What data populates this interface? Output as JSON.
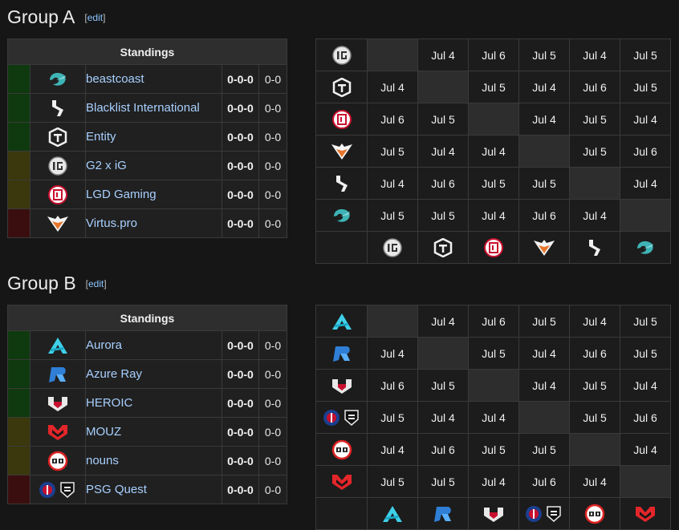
{
  "colors": {
    "green": "#0f3a0f",
    "olive": "#3a380c",
    "red": "#3a0e0e",
    "link": "#a8d0ff"
  },
  "groups": [
    {
      "title": "Group A",
      "edit": "edit",
      "standings_header": "Standings",
      "teams": [
        {
          "name": "beastcoast",
          "icon": "beastcoast-logo-icon",
          "record": "0-0-0",
          "score": "0-0",
          "status": "green"
        },
        {
          "name": "Blacklist International",
          "icon": "blacklist-logo-icon",
          "record": "0-0-0",
          "score": "0-0",
          "status": "green"
        },
        {
          "name": "Entity",
          "icon": "entity-logo-icon",
          "record": "0-0-0",
          "score": "0-0",
          "status": "green"
        },
        {
          "name": "G2 x iG",
          "icon": "g2-ig-logo-icon",
          "record": "0-0-0",
          "score": "0-0",
          "status": "olive"
        },
        {
          "name": "LGD Gaming",
          "icon": "lgd-logo-icon",
          "record": "0-0-0",
          "score": "0-0",
          "status": "olive"
        },
        {
          "name": "Virtus.pro",
          "icon": "virtuspro-logo-icon",
          "record": "0-0-0",
          "score": "0-0",
          "status": "red"
        }
      ],
      "matrix_rows": [
        "g2-ig-logo-icon",
        "entity-logo-icon",
        "lgd-logo-icon",
        "virtuspro-logo-icon",
        "blacklist-logo-icon",
        "beastcoast-logo-icon"
      ],
      "matrix_cols": [
        "g2-ig-logo-icon",
        "entity-logo-icon",
        "lgd-logo-icon",
        "virtuspro-logo-icon",
        "blacklist-logo-icon",
        "beastcoast-logo-icon"
      ],
      "matrix": [
        [
          "",
          "Jul 4",
          "Jul 6",
          "Jul 5",
          "Jul 4",
          "Jul 5"
        ],
        [
          "Jul 4",
          "",
          "Jul 5",
          "Jul 4",
          "Jul 6",
          "Jul 5"
        ],
        [
          "Jul 6",
          "Jul 5",
          "",
          "Jul 4",
          "Jul 5",
          "Jul 4"
        ],
        [
          "Jul 5",
          "Jul 4",
          "Jul 4",
          "",
          "Jul 5",
          "Jul 6"
        ],
        [
          "Jul 4",
          "Jul 6",
          "Jul 5",
          "Jul 5",
          "",
          "Jul 4"
        ],
        [
          "Jul 5",
          "Jul 5",
          "Jul 4",
          "Jul 6",
          "Jul 4",
          ""
        ]
      ]
    },
    {
      "title": "Group B",
      "edit": "edit",
      "standings_header": "Standings",
      "teams": [
        {
          "name": "Aurora",
          "icon": "aurora-logo-icon",
          "record": "0-0-0",
          "score": "0-0",
          "status": "green"
        },
        {
          "name": "Azure Ray",
          "icon": "azure-ray-logo-icon",
          "record": "0-0-0",
          "score": "0-0",
          "status": "green"
        },
        {
          "name": "HEROIC",
          "icon": "heroic-logo-icon",
          "record": "0-0-0",
          "score": "0-0",
          "status": "green"
        },
        {
          "name": "MOUZ",
          "icon": "mouz-logo-icon",
          "record": "0-0-0",
          "score": "0-0",
          "status": "olive"
        },
        {
          "name": "nouns",
          "icon": "nouns-logo-icon",
          "record": "0-0-0",
          "score": "0-0",
          "status": "olive"
        },
        {
          "name": "PSG Quest",
          "icon": "psg-quest-logo-icon",
          "record": "0-0-0",
          "score": "0-0",
          "status": "red"
        }
      ],
      "matrix_rows": [
        "aurora-logo-icon",
        "azure-ray-logo-icon",
        "heroic-logo-icon",
        "psg-quest-logo-icon",
        "nouns-logo-icon",
        "mouz-logo-icon"
      ],
      "matrix_cols": [
        "aurora-logo-icon",
        "azure-ray-logo-icon",
        "heroic-logo-icon",
        "psg-quest-logo-icon",
        "nouns-logo-icon",
        "mouz-logo-icon"
      ],
      "matrix": [
        [
          "",
          "Jul 4",
          "Jul 6",
          "Jul 5",
          "Jul 4",
          "Jul 5"
        ],
        [
          "Jul 4",
          "",
          "Jul 5",
          "Jul 4",
          "Jul 6",
          "Jul 5"
        ],
        [
          "Jul 6",
          "Jul 5",
          "",
          "Jul 4",
          "Jul 5",
          "Jul 4"
        ],
        [
          "Jul 5",
          "Jul 4",
          "Jul 4",
          "",
          "Jul 5",
          "Jul 6"
        ],
        [
          "Jul 4",
          "Jul 6",
          "Jul 5",
          "Jul 5",
          "",
          "Jul 4"
        ],
        [
          "Jul 5",
          "Jul 5",
          "Jul 4",
          "Jul 6",
          "Jul 4",
          ""
        ]
      ]
    }
  ]
}
